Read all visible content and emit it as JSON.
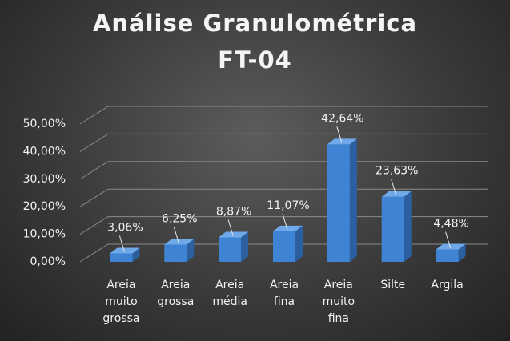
{
  "chart_data": {
    "type": "bar3d",
    "title": "Análise Granulométrica",
    "subtitle": "FT-04",
    "categories": [
      "Areia muito grossa",
      "Areia grossa",
      "Areia média",
      "Areia fina",
      "Areia muito fina",
      "Silte",
      "Argila"
    ],
    "values": [
      3.06,
      6.25,
      8.87,
      11.07,
      42.64,
      23.63,
      4.48
    ],
    "value_labels": [
      "3,06%",
      "6,25%",
      "8,87%",
      "11,07%",
      "42,64%",
      "23,63%",
      "4,48%"
    ],
    "color": "#3f84d4",
    "ylim": [
      0,
      50
    ],
    "yticks": [
      {
        "value": 0,
        "label": "0,00%"
      },
      {
        "value": 10,
        "label": "10,00%"
      },
      {
        "value": 20,
        "label": "20,00%"
      },
      {
        "value": 30,
        "label": "30,00%"
      },
      {
        "value": 40,
        "label": "40,00%"
      },
      {
        "value": 50,
        "label": "50,00%"
      }
    ],
    "grid": true
  }
}
